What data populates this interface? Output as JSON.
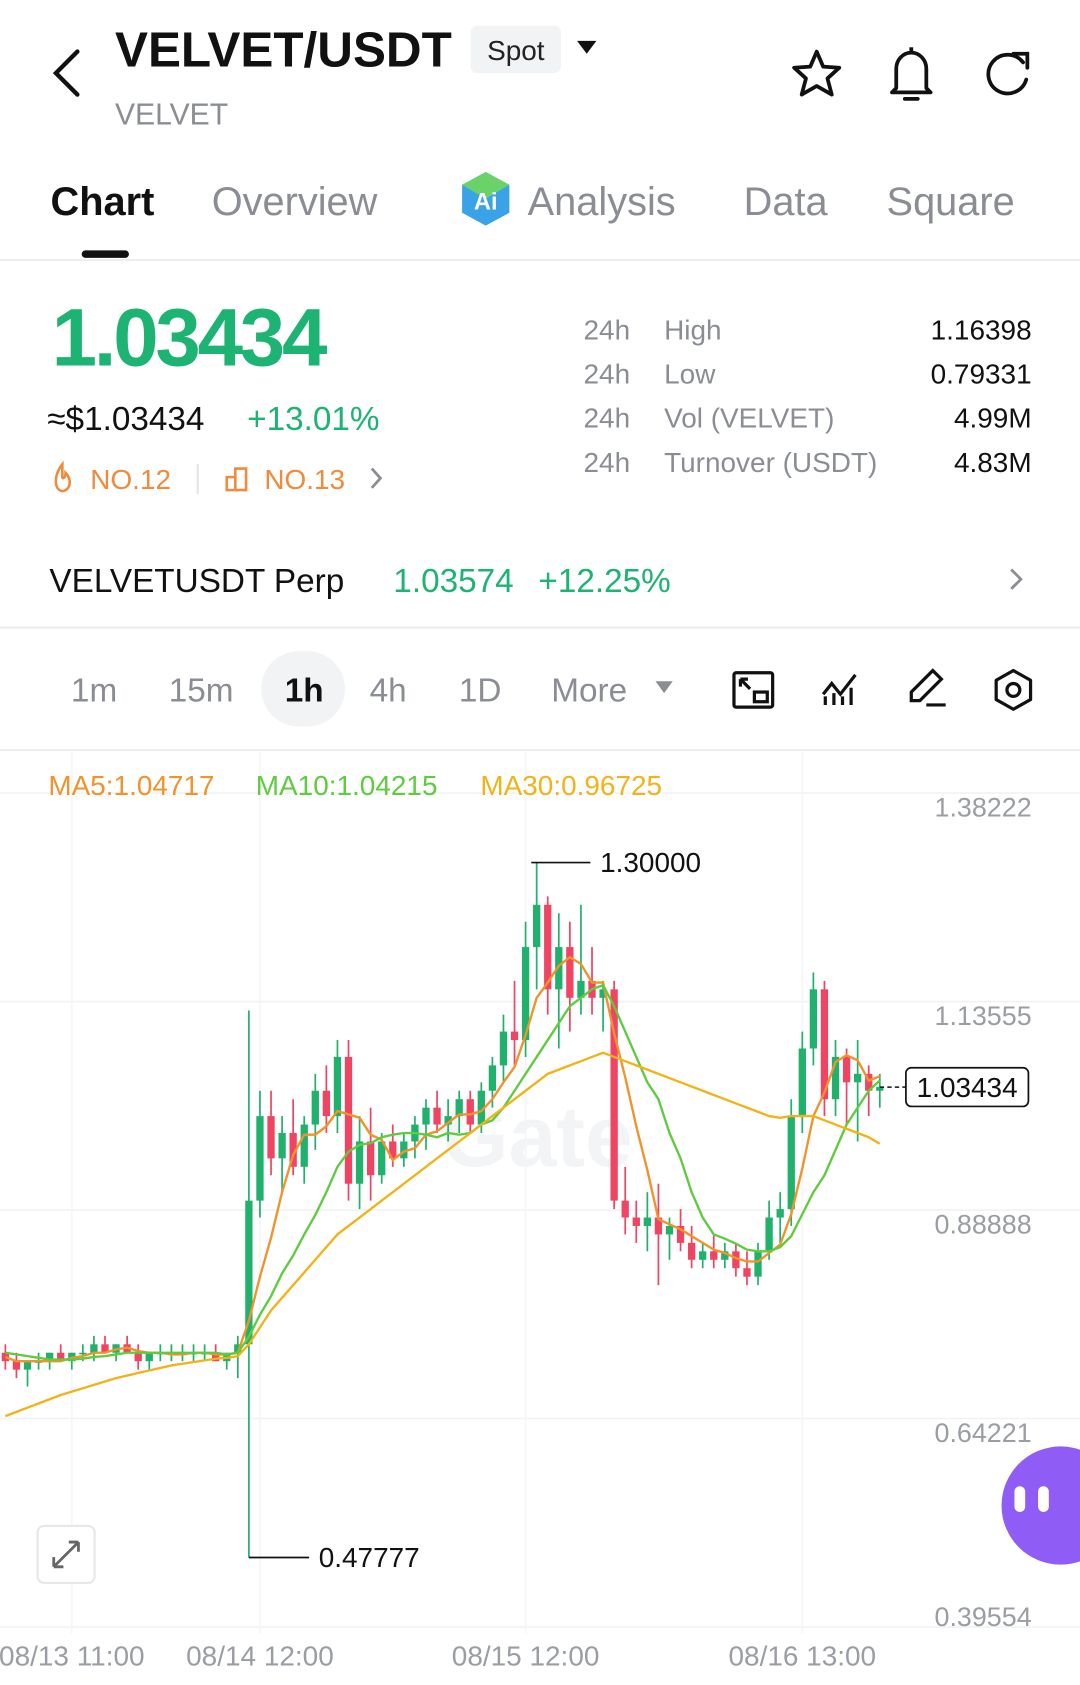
{
  "header": {
    "symbol": "VELVET/USDT",
    "market": "Spot",
    "base": "VELVET"
  },
  "tabs": [
    "Chart",
    "Overview",
    "Analysis",
    "Data",
    "Square"
  ],
  "ticker": {
    "price": "1.03434",
    "usd": "≈$1.03434",
    "change": "+13.01%",
    "rank_hot": "NO.12",
    "rank_sector": "NO.13",
    "stats": [
      [
        "24h",
        "High",
        "1.16398"
      ],
      [
        "24h",
        "Low",
        "0.79331"
      ],
      [
        "24h",
        "Vol (VELVET)",
        "4.99M"
      ],
      [
        "24h",
        "Turnover (USDT)",
        "4.83M"
      ]
    ]
  },
  "perp": {
    "name": "VELVETUSDT Perp",
    "price": "1.03574",
    "change": "+12.25%"
  },
  "intervals": [
    "1m",
    "15m",
    "1h",
    "4h",
    "1D",
    "More"
  ],
  "chart_data": {
    "type": "candlestick",
    "watermark": "Gate",
    "categories": [
      null,
      null,
      null,
      null,
      null,
      null,
      "08/13 11:00",
      null,
      null,
      null,
      null,
      null,
      null,
      null,
      null,
      null,
      null,
      null,
      null,
      null,
      null,
      null,
      null,
      "08/14 12:00",
      null,
      null,
      null,
      null,
      null,
      null,
      null,
      null,
      null,
      null,
      null,
      null,
      null,
      null,
      null,
      null,
      null,
      null,
      null,
      null,
      null,
      null,
      null,
      "08/15 12:00",
      null,
      null,
      null,
      null,
      null,
      null,
      null,
      null,
      null,
      null,
      null,
      null,
      null,
      null,
      null,
      null,
      null,
      null,
      null,
      null,
      null,
      null,
      null,
      null,
      "08/16 13:00",
      null,
      null,
      null,
      null,
      null,
      null,
      null
    ],
    "open": [
      0.72,
      0.71,
      0.7,
      0.71,
      0.71,
      0.72,
      0.71,
      0.72,
      0.72,
      0.73,
      0.72,
      0.73,
      0.72,
      0.71,
      0.72,
      0.72,
      0.72,
      0.72,
      0.72,
      0.72,
      0.71,
      0.72,
      0.73,
      0.9,
      1.0,
      0.95,
      0.98,
      0.94,
      0.99,
      1.03,
      1.0,
      1.07,
      0.92,
      0.97,
      0.93,
      0.97,
      0.95,
      0.97,
      0.99,
      1.01,
      0.99,
      1.0,
      1.02,
      0.99,
      1.03,
      1.06,
      1.1,
      1.09,
      1.2,
      1.25,
      1.15,
      1.2,
      1.14,
      1.16,
      1.14,
      1.15,
      0.9,
      0.88,
      0.87,
      0.88,
      0.86,
      0.87,
      0.85,
      0.83,
      0.84,
      0.83,
      0.84,
      0.82,
      0.81,
      0.84,
      0.88,
      0.89,
      1.0,
      1.08,
      1.15,
      1.02,
      1.07,
      1.04,
      1.05,
      1.03
    ],
    "high": [
      0.73,
      0.72,
      0.71,
      0.72,
      0.72,
      0.73,
      0.72,
      0.73,
      0.74,
      0.74,
      0.73,
      0.74,
      0.73,
      0.72,
      0.73,
      0.73,
      0.73,
      0.73,
      0.73,
      0.73,
      0.72,
      0.74,
      1.125,
      1.03,
      1.03,
      1.0,
      1.02,
      1.0,
      1.05,
      1.06,
      1.09,
      1.09,
      1.0,
      1.01,
      0.98,
      0.99,
      0.98,
      1.0,
      1.02,
      1.03,
      1.02,
      1.03,
      1.03,
      1.04,
      1.07,
      1.12,
      1.16,
      1.23,
      1.3,
      1.26,
      1.24,
      1.23,
      1.25,
      1.2,
      1.16,
      1.16,
      0.94,
      0.9,
      0.91,
      0.92,
      0.88,
      0.89,
      0.87,
      0.85,
      0.86,
      0.85,
      0.85,
      0.84,
      0.85,
      0.9,
      0.91,
      1.02,
      1.1,
      1.17,
      1.16,
      1.09,
      1.08,
      1.09,
      1.06,
      1.05
    ],
    "low": [
      0.7,
      0.69,
      0.68,
      0.7,
      0.7,
      0.71,
      0.7,
      0.71,
      0.71,
      0.72,
      0.71,
      0.72,
      0.7,
      0.7,
      0.71,
      0.71,
      0.71,
      0.71,
      0.71,
      0.71,
      0.7,
      0.69,
      0.47777,
      0.88,
      0.93,
      0.91,
      0.93,
      0.92,
      0.96,
      0.98,
      0.98,
      0.9,
      0.89,
      0.9,
      0.92,
      0.94,
      0.94,
      0.95,
      0.96,
      0.98,
      0.97,
      0.98,
      0.98,
      0.98,
      1.01,
      1.04,
      1.06,
      1.07,
      1.15,
      1.12,
      1.08,
      1.1,
      1.12,
      1.12,
      1.1,
      0.89,
      0.86,
      0.85,
      0.84,
      0.8,
      0.83,
      0.84,
      0.82,
      0.82,
      0.82,
      0.82,
      0.81,
      0.8,
      0.8,
      0.83,
      0.85,
      0.87,
      0.98,
      1.06,
      1.0,
      1.0,
      0.99,
      0.97,
      1.0,
      1.01
    ],
    "close": [
      0.71,
      0.7,
      0.71,
      0.71,
      0.72,
      0.71,
      0.72,
      0.72,
      0.73,
      0.72,
      0.73,
      0.72,
      0.71,
      0.72,
      0.72,
      0.72,
      0.72,
      0.72,
      0.72,
      0.71,
      0.72,
      0.73,
      0.9,
      1.0,
      0.95,
      0.98,
      0.94,
      0.99,
      1.03,
      1.0,
      1.07,
      0.92,
      0.97,
      0.93,
      0.97,
      0.95,
      0.97,
      0.99,
      1.01,
      0.99,
      1.0,
      1.02,
      0.99,
      1.03,
      1.06,
      1.1,
      1.09,
      1.2,
      1.25,
      1.15,
      1.2,
      1.14,
      1.16,
      1.14,
      1.15,
      0.9,
      0.88,
      0.87,
      0.88,
      0.86,
      0.87,
      0.85,
      0.83,
      0.84,
      0.83,
      0.84,
      0.82,
      0.81,
      0.84,
      0.88,
      0.89,
      1.0,
      1.08,
      1.15,
      1.02,
      1.07,
      1.04,
      1.05,
      1.03,
      1.03434
    ],
    "up_color": "#20b26c",
    "down_color": "#ef4562",
    "series": [
      {
        "name": "MA5",
        "legend_label": "MA5:1.04717",
        "color": "#f0932b",
        "values": [
          0.715,
          0.71,
          0.71,
          0.71,
          0.71,
          0.71,
          0.714,
          0.716,
          0.72,
          0.72,
          0.724,
          0.726,
          0.722,
          0.72,
          0.72,
          0.718,
          0.718,
          0.72,
          0.72,
          0.718,
          0.718,
          0.72,
          0.758,
          0.81,
          0.856,
          0.91,
          0.954,
          0.978,
          0.978,
          0.988,
          1.006,
          1.002,
          0.998,
          0.978,
          0.972,
          0.948,
          0.958,
          0.962,
          0.978,
          0.982,
          0.992,
          1.002,
          1.002,
          1.006,
          1.02,
          1.04,
          1.058,
          1.096,
          1.14,
          1.158,
          1.178,
          1.188,
          1.18,
          1.158,
          1.158,
          1.098,
          1.046,
          0.988,
          0.936,
          0.878,
          0.872,
          0.866,
          0.858,
          0.85,
          0.842,
          0.838,
          0.832,
          0.828,
          0.828,
          0.838,
          0.848,
          0.884,
          0.938,
          1.0,
          1.028,
          1.064,
          1.072,
          1.066,
          1.042,
          1.04717
        ]
      },
      {
        "name": "MA10",
        "legend_label": "MA10:1.04215",
        "color": "#5fcc3f",
        "values": [
          0.72,
          0.718,
          0.716,
          0.714,
          0.712,
          0.712,
          0.712,
          0.713,
          0.715,
          0.716,
          0.718,
          0.72,
          0.72,
          0.72,
          0.72,
          0.72,
          0.72,
          0.72,
          0.72,
          0.72,
          0.718,
          0.72,
          0.739,
          0.765,
          0.787,
          0.814,
          0.835,
          0.86,
          0.883,
          0.91,
          0.94,
          0.958,
          0.966,
          0.968,
          0.975,
          0.978,
          0.98,
          0.98,
          0.978,
          0.975,
          0.98,
          0.978,
          0.98,
          0.99,
          0.995,
          1.01,
          1.03,
          1.05,
          1.07,
          1.09,
          1.11,
          1.13,
          1.14,
          1.15,
          1.155,
          1.13,
          1.1,
          1.07,
          1.04,
          1.02,
          0.98,
          0.95,
          0.91,
          0.88,
          0.86,
          0.855,
          0.849,
          0.842,
          0.84,
          0.84,
          0.845,
          0.858,
          0.884,
          0.91,
          0.93,
          0.96,
          0.99,
          1.01,
          1.03,
          1.04215
        ]
      },
      {
        "name": "MA30",
        "legend_label": "MA30:0.96725",
        "color": "#f2b318",
        "values": [
          0.645,
          0.65,
          0.655,
          0.66,
          0.665,
          0.67,
          0.674,
          0.678,
          0.682,
          0.686,
          0.69,
          0.693,
          0.696,
          0.699,
          0.702,
          0.705,
          0.707,
          0.709,
          0.711,
          0.713,
          0.714,
          0.716,
          0.73,
          0.75,
          0.77,
          0.785,
          0.8,
          0.815,
          0.83,
          0.845,
          0.86,
          0.87,
          0.88,
          0.89,
          0.9,
          0.91,
          0.92,
          0.93,
          0.94,
          0.95,
          0.96,
          0.97,
          0.98,
          0.99,
          1.0,
          1.01,
          1.02,
          1.03,
          1.04,
          1.05,
          1.055,
          1.06,
          1.065,
          1.07,
          1.075,
          1.07,
          1.065,
          1.06,
          1.055,
          1.05,
          1.045,
          1.04,
          1.035,
          1.03,
          1.025,
          1.02,
          1.015,
          1.01,
          1.005,
          1.0,
          0.998,
          1.0,
          1.0,
          1.0,
          0.995,
          0.99,
          0.985,
          0.98,
          0.975,
          0.96725
        ]
      }
    ],
    "ylim": [
      0.39554,
      1.38222
    ],
    "yticks": [
      1.38222,
      1.13555,
      0.88888,
      0.64221,
      0.39554
    ],
    "high_marker": {
      "index": 48,
      "value": 1.3,
      "label": "1.30000"
    },
    "low_marker": {
      "index": 22,
      "value": 0.47777
    },
    "last_price": 1.03434
  }
}
